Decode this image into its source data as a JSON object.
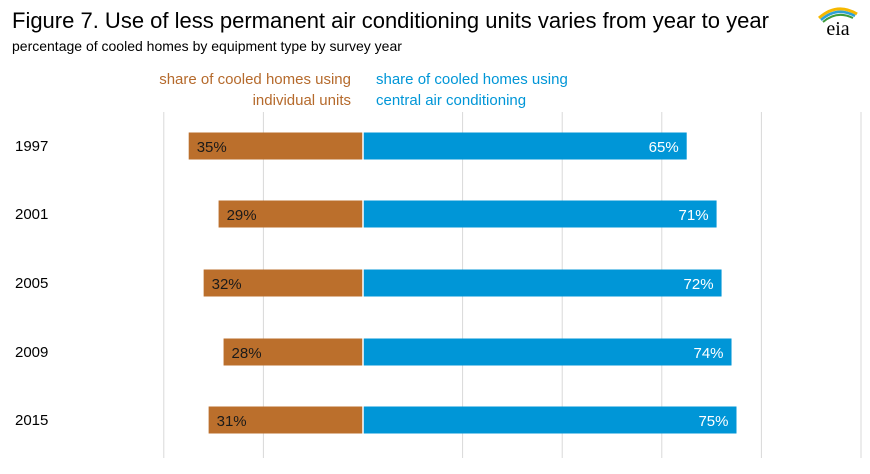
{
  "title": "Figure 7. Use of less permanent air conditioning units varies from year to year",
  "subtitle": "percentage of cooled homes by equipment type by survey year",
  "logo_text": "eia",
  "colors": {
    "individual": "#bb6f2c",
    "central": "#0096d7",
    "grid": "#d9d9d9"
  },
  "chart_data": {
    "type": "bar",
    "orientation": "horizontal-diverging",
    "title": "Figure 7. Use of less permanent air conditioning units varies from year to year",
    "subtitle": "percentage of cooled homes by equipment type by survey year",
    "categories": [
      "1997",
      "2001",
      "2005",
      "2009",
      "2015"
    ],
    "series": [
      {
        "name": "share of cooled homes using individual units",
        "name_lines": [
          "share of cooled homes using",
          "individual units"
        ],
        "values": [
          35,
          29,
          32,
          28,
          31
        ],
        "labels": [
          "35%",
          "29%",
          "32%",
          "28%",
          "31%"
        ]
      },
      {
        "name": "share of cooled homes using central air conditioning",
        "name_lines": [
          "share of cooled homes using",
          "central air conditioning"
        ],
        "values": [
          65,
          71,
          72,
          74,
          75
        ],
        "labels": [
          "65%",
          "71%",
          "72%",
          "74%",
          "75%"
        ]
      }
    ],
    "xlim": [
      -40,
      100
    ],
    "grid": true
  }
}
